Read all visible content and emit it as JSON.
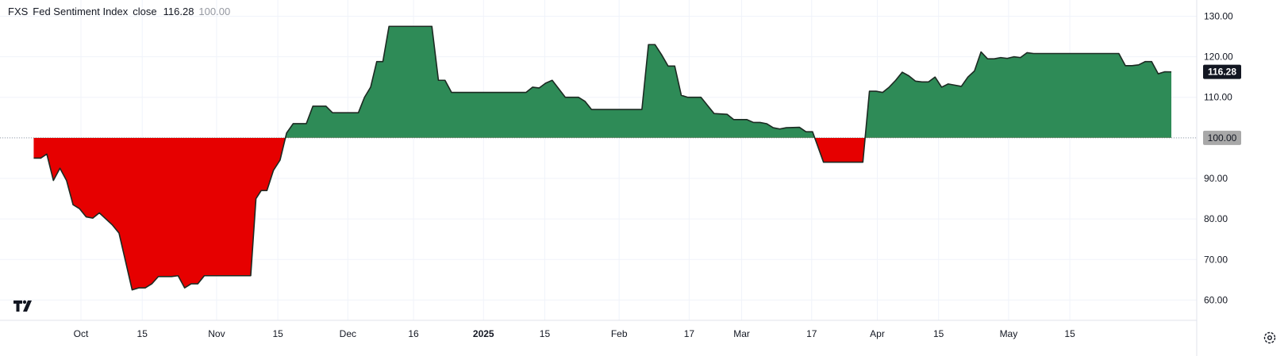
{
  "legend": {
    "symbol": "FXS",
    "title": "Fed Sentiment Index",
    "metric": "close",
    "close_value": "116.28",
    "base_value": "100.00"
  },
  "colors": {
    "above": "#2e8b57",
    "below": "#e60000",
    "line": "#1c2a22",
    "last_label_bg": "#131722",
    "base_label_bg": "#a8a8a8"
  },
  "icons": {
    "logo": "tradingview-logo",
    "settings": "gear-icon"
  },
  "chart_data": {
    "type": "area",
    "baseline": 100,
    "ylim": [
      55,
      134
    ],
    "xlim": [
      -18.5,
      255
    ],
    "y_ticks": [
      130,
      120,
      110,
      100,
      90,
      80,
      70,
      60
    ],
    "y_tick_labels": [
      "130.00",
      "120.00",
      "110.00",
      "100.00",
      "90.00",
      "80.00",
      "70.00",
      "60.00"
    ],
    "x_ticks": [
      {
        "label": "Oct",
        "day": 0,
        "bold": false
      },
      {
        "label": "15",
        "day": 14,
        "bold": false
      },
      {
        "label": "Nov",
        "day": 31,
        "bold": false
      },
      {
        "label": "15",
        "day": 45,
        "bold": false
      },
      {
        "label": "Dec",
        "day": 61,
        "bold": false
      },
      {
        "label": "16",
        "day": 76,
        "bold": false
      },
      {
        "label": "2025",
        "day": 92,
        "bold": true
      },
      {
        "label": "15",
        "day": 106,
        "bold": false
      },
      {
        "label": "Feb",
        "day": 123,
        "bold": false
      },
      {
        "label": "17",
        "day": 139,
        "bold": false
      },
      {
        "label": "Mar",
        "day": 151,
        "bold": false
      },
      {
        "label": "17",
        "day": 167,
        "bold": false
      },
      {
        "label": "Apr",
        "day": 182,
        "bold": false
      },
      {
        "label": "15",
        "day": 196,
        "bold": false
      },
      {
        "label": "May",
        "day": 212,
        "bold": false
      },
      {
        "label": "15",
        "day": 226,
        "bold": false
      }
    ],
    "last_value_label": "116.28",
    "base_value_label": "100.00",
    "points": [
      [
        -10.8,
        95.0
      ],
      [
        -9.2,
        95.0
      ],
      [
        -7.8,
        96.0
      ],
      [
        -6.3,
        89.5
      ],
      [
        -4.8,
        92.5
      ],
      [
        -3.3,
        89.5
      ],
      [
        -1.8,
        83.5
      ],
      [
        -0.3,
        82.5
      ],
      [
        1.2,
        80.5
      ],
      [
        2.7,
        80.2
      ],
      [
        4.2,
        81.5
      ],
      [
        5.7,
        80.0
      ],
      [
        7.2,
        78.5
      ],
      [
        8.7,
        76.5
      ],
      [
        10.2,
        69.5
      ],
      [
        11.7,
        62.5
      ],
      [
        13.2,
        63.0
      ],
      [
        14.7,
        63.0
      ],
      [
        16.2,
        64.0
      ],
      [
        17.7,
        65.8
      ],
      [
        19.2,
        65.8
      ],
      [
        20.7,
        65.8
      ],
      [
        22.2,
        66.0
      ],
      [
        23.7,
        63.0
      ],
      [
        25.2,
        64.0
      ],
      [
        26.7,
        64.0
      ],
      [
        28.2,
        66.0
      ],
      [
        38.8,
        66.0
      ],
      [
        40.0,
        85.0
      ],
      [
        41.2,
        87.0
      ],
      [
        42.5,
        87.0
      ],
      [
        44.0,
        92.0
      ],
      [
        45.5,
        94.5
      ],
      [
        47.0,
        101.2
      ],
      [
        48.5,
        103.5
      ],
      [
        51.5,
        103.5
      ],
      [
        53.0,
        107.8
      ],
      [
        56.0,
        107.8
      ],
      [
        57.5,
        106.2
      ],
      [
        63.4,
        106.2
      ],
      [
        64.8,
        110.0
      ],
      [
        66.2,
        112.5
      ],
      [
        67.6,
        118.8
      ],
      [
        69.0,
        118.8
      ],
      [
        70.4,
        127.5
      ],
      [
        80.2,
        127.5
      ],
      [
        81.7,
        114.2
      ],
      [
        83.2,
        114.2
      ],
      [
        84.7,
        111.2
      ],
      [
        101.7,
        111.2
      ],
      [
        103.2,
        112.5
      ],
      [
        104.7,
        112.3
      ],
      [
        106.2,
        113.5
      ],
      [
        107.7,
        114.2
      ],
      [
        110.7,
        110.0
      ],
      [
        113.7,
        110.0
      ],
      [
        115.2,
        109.0
      ],
      [
        116.7,
        107.0
      ],
      [
        128.2,
        107.0
      ],
      [
        129.7,
        123.0
      ],
      [
        131.2,
        123.0
      ],
      [
        132.7,
        120.5
      ],
      [
        134.2,
        117.7
      ],
      [
        135.7,
        117.7
      ],
      [
        137.2,
        110.5
      ],
      [
        138.7,
        110.0
      ],
      [
        141.7,
        110.0
      ],
      [
        143.2,
        108.0
      ],
      [
        144.7,
        106.0
      ],
      [
        147.7,
        105.8
      ],
      [
        149.2,
        104.5
      ],
      [
        152.2,
        104.5
      ],
      [
        153.7,
        103.8
      ],
      [
        155.2,
        103.8
      ],
      [
        156.7,
        103.5
      ],
      [
        158.2,
        102.5
      ],
      [
        159.7,
        102.2
      ],
      [
        161.2,
        102.5
      ],
      [
        164.2,
        102.6
      ],
      [
        165.7,
        101.5
      ],
      [
        167.2,
        101.5
      ],
      [
        169.7,
        94.0
      ],
      [
        178.7,
        94.0
      ],
      [
        180.2,
        111.5
      ],
      [
        181.7,
        111.5
      ],
      [
        183.2,
        111.2
      ],
      [
        184.7,
        112.5
      ],
      [
        186.2,
        114.2
      ],
      [
        187.7,
        116.2
      ],
      [
        189.2,
        115.3
      ],
      [
        190.7,
        114.0
      ],
      [
        192.2,
        113.8
      ],
      [
        193.7,
        113.8
      ],
      [
        195.2,
        115.0
      ],
      [
        196.7,
        112.5
      ],
      [
        198.2,
        113.3
      ],
      [
        199.7,
        113.0
      ],
      [
        201.2,
        112.7
      ],
      [
        202.7,
        115.0
      ],
      [
        204.2,
        116.5
      ],
      [
        205.7,
        121.2
      ],
      [
        207.2,
        119.5
      ],
      [
        208.7,
        119.5
      ],
      [
        210.2,
        119.8
      ],
      [
        211.7,
        119.6
      ],
      [
        213.2,
        120.0
      ],
      [
        214.7,
        119.8
      ],
      [
        216.2,
        121.0
      ],
      [
        217.7,
        120.8
      ],
      [
        237.2,
        120.8
      ],
      [
        238.7,
        117.8
      ],
      [
        240.2,
        117.8
      ],
      [
        241.7,
        118.0
      ],
      [
        243.2,
        118.8
      ],
      [
        244.7,
        118.8
      ],
      [
        246.2,
        115.8
      ],
      [
        247.7,
        116.3
      ],
      [
        249.2,
        116.28
      ]
    ]
  }
}
